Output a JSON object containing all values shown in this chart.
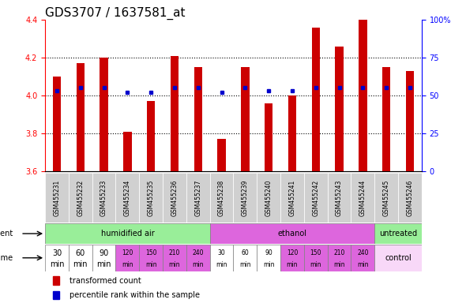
{
  "title": "GDS3707 / 1637581_at",
  "samples": [
    "GSM455231",
    "GSM455232",
    "GSM455233",
    "GSM455234",
    "GSM455235",
    "GSM455236",
    "GSM455237",
    "GSM455238",
    "GSM455239",
    "GSM455240",
    "GSM455241",
    "GSM455242",
    "GSM455243",
    "GSM455244",
    "GSM455245",
    "GSM455246"
  ],
  "transformed_count": [
    4.1,
    4.17,
    4.2,
    3.81,
    3.97,
    4.21,
    4.15,
    3.77,
    4.15,
    3.96,
    4.0,
    4.36,
    4.26,
    4.4,
    4.15,
    4.13
  ],
  "percentile_rank": [
    53,
    55,
    55,
    52,
    52,
    55,
    55,
    52,
    55,
    53,
    53,
    55,
    55,
    55,
    55,
    55
  ],
  "ylim": [
    3.6,
    4.4
  ],
  "y_left_ticks": [
    3.6,
    3.8,
    4.0,
    4.2,
    4.4
  ],
  "y_right_labels": [
    "0",
    "25",
    "50",
    "75",
    "100%"
  ],
  "y_right_ticks": [
    3.6,
    3.8,
    4.0,
    4.2,
    4.4
  ],
  "bar_color": "#cc0000",
  "dot_color": "#0000cc",
  "bar_width": 0.35,
  "agents": [
    {
      "label": "humidified air",
      "start": 0,
      "end": 7,
      "color": "#99ee99"
    },
    {
      "label": "ethanol",
      "start": 7,
      "end": 14,
      "color": "#dd66dd"
    },
    {
      "label": "untreated",
      "start": 14,
      "end": 16,
      "color": "#99ee99"
    }
  ],
  "times": [
    "30",
    "60",
    "90",
    "120",
    "150",
    "210",
    "240",
    "30",
    "60",
    "90",
    "120",
    "150",
    "210",
    "240"
  ],
  "time_colors": [
    "#ffffff",
    "#ffffff",
    "#ffffff",
    "#dd66dd",
    "#dd66dd",
    "#dd66dd",
    "#dd66dd",
    "#ffffff",
    "#ffffff",
    "#ffffff",
    "#dd66dd",
    "#dd66dd",
    "#dd66dd",
    "#dd66dd"
  ],
  "control_label": "control",
  "control_color": "#f8d8f8",
  "sample_label_bg": "#d0d0d0",
  "grid_dotted_at": [
    3.8,
    4.0,
    4.2
  ],
  "label_fontsize": 7,
  "tick_fontsize": 7,
  "sample_fontsize": 5.5,
  "title_fontsize": 11
}
